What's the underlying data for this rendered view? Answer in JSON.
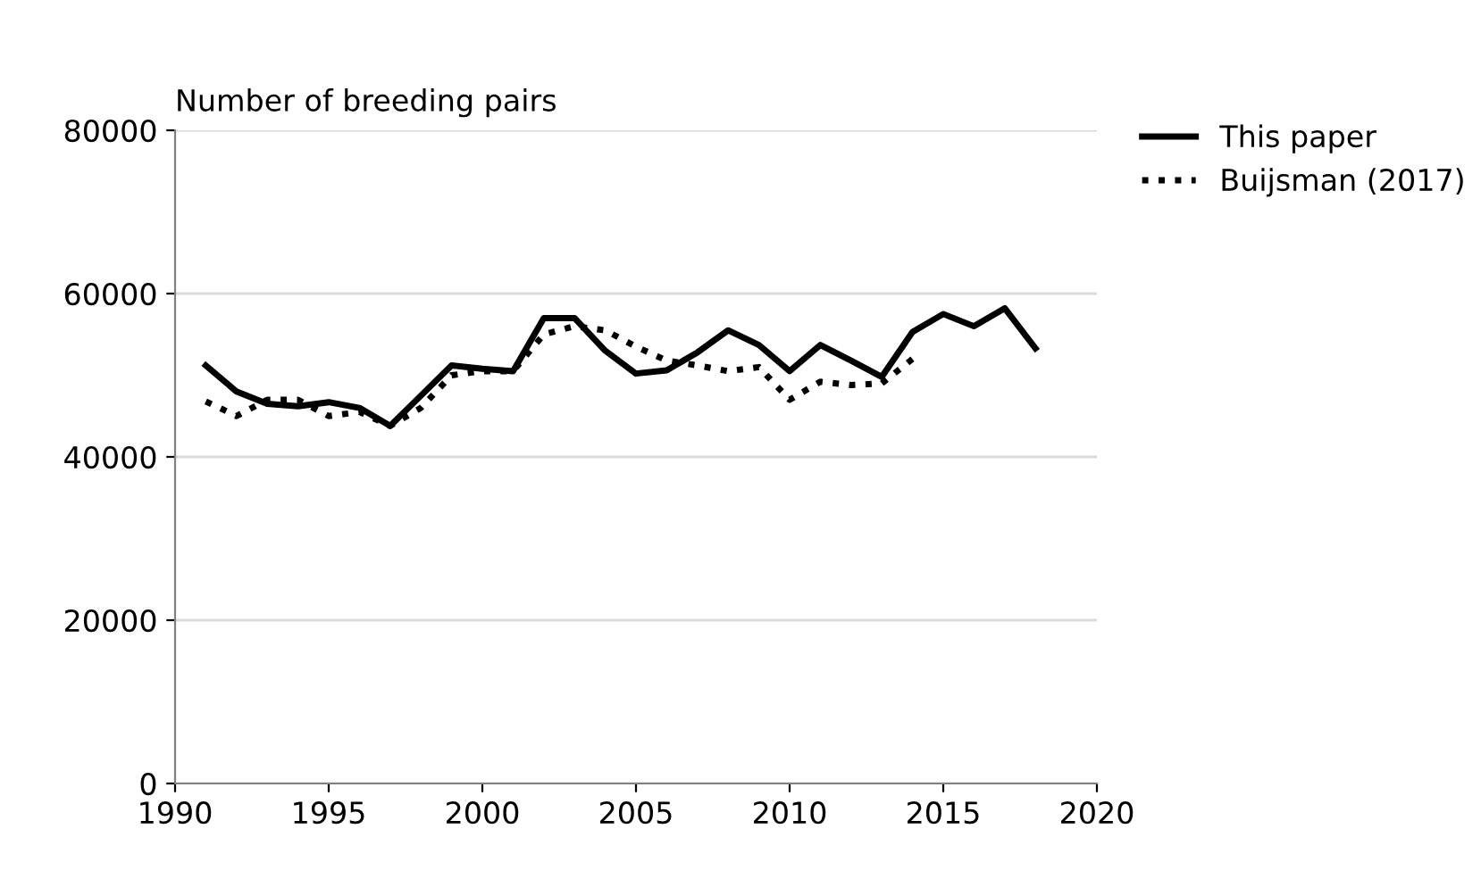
{
  "chart_data": {
    "type": "line",
    "ylabel": "Number of breeding pairs",
    "xlim": [
      1990,
      2020
    ],
    "xticks": [
      1990,
      1995,
      2000,
      2005,
      2010,
      2015,
      2020
    ],
    "ylim": [
      0,
      80000
    ],
    "yticks": [
      0,
      20000,
      40000,
      60000,
      80000
    ],
    "grid": "y",
    "legend": "top right",
    "series": [
      {
        "name": "This paper",
        "color": "#000000",
        "line_style": "solid",
        "x": [
          1991,
          1992,
          1993,
          1994,
          1995,
          1996,
          1997,
          1998,
          1999,
          2000,
          2001,
          2002,
          2003,
          2004,
          2005,
          2006,
          2007,
          2008,
          2009,
          2010,
          2011,
          2012,
          2013,
          2014,
          2015,
          2016,
          2017,
          2018
        ],
        "values": [
          51200,
          48000,
          46500,
          46200,
          46700,
          46000,
          43800,
          47500,
          51200,
          50800,
          50500,
          57000,
          57000,
          53000,
          50200,
          50600,
          52800,
          55500,
          53700,
          50500,
          53700,
          51800,
          49800,
          55300,
          57500,
          56000,
          58200,
          53300
        ]
      },
      {
        "name": "Buijsman (2017)",
        "color": "#000000",
        "line_style": "dotted",
        "x": [
          1991,
          1992,
          1993,
          1994,
          1995,
          1996,
          1997,
          1998,
          1999,
          2000,
          2001,
          2002,
          2003,
          2004,
          2005,
          2006,
          2007,
          2008,
          2009,
          2010,
          2011,
          2012,
          2013,
          2014
        ],
        "values": [
          46800,
          45000,
          47000,
          47000,
          45000,
          45500,
          43800,
          46000,
          50000,
          50500,
          50500,
          55000,
          56000,
          55500,
          53500,
          51800,
          51200,
          50500,
          51000,
          47000,
          49200,
          48800,
          49000,
          52000
        ]
      }
    ]
  }
}
